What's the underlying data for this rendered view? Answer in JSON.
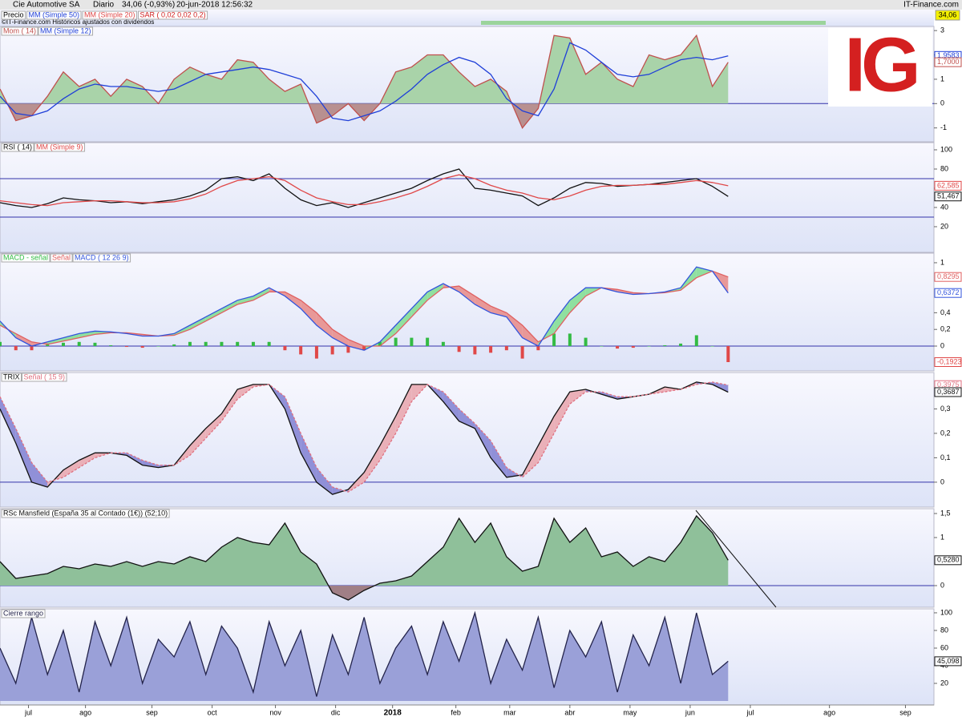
{
  "header": {
    "name": "Cie Automotive SA",
    "period": "Diario",
    "quote": "34,06 (-0,93%)",
    "datetime": "20-jun-2018 12:56:32",
    "source": "IT-Finance.com",
    "logo": "IG"
  },
  "price_panel": {
    "legend": [
      "Precio",
      "MM (Simple 50)",
      "MM (Simple 20)",
      "SAR ( 0,02 0,02 0,2)"
    ],
    "note": "©IT-Finance.com Históricos ajustados con dividendos",
    "last": {
      "value": 34.06,
      "label": "34,06"
    }
  },
  "x_axis": {
    "xlim": [
      0,
      295
    ],
    "xticks": [
      {
        "value": 9,
        "label": "jul"
      },
      {
        "value": 27,
        "label": "ago"
      },
      {
        "value": 48,
        "label": "sep"
      },
      {
        "value": 67,
        "label": "oct"
      },
      {
        "value": 87,
        "label": "nov"
      },
      {
        "value": 106,
        "label": "dic"
      },
      {
        "value": 124,
        "label": "2018"
      },
      {
        "value": 144,
        "label": "feb"
      },
      {
        "value": 161,
        "label": "mar"
      },
      {
        "value": 180,
        "label": "abr"
      },
      {
        "value": 199,
        "label": "may"
      },
      {
        "value": 218,
        "label": "jun"
      },
      {
        "value": 237,
        "label": "jul"
      },
      {
        "value": 262,
        "label": "ago"
      },
      {
        "value": 286,
        "label": "sep"
      }
    ]
  },
  "chart_data": [
    {
      "type": "line",
      "x": [
        0,
        5,
        10,
        15,
        20,
        25,
        30,
        35,
        40,
        45,
        50,
        55,
        60,
        65,
        70,
        75,
        80,
        85,
        90,
        95,
        100,
        105,
        110,
        115,
        120,
        125,
        130,
        135,
        140,
        145,
        150,
        155,
        160,
        165,
        170,
        175,
        180,
        185,
        190,
        195,
        200,
        205,
        210,
        215,
        220,
        225,
        230
      ],
      "ylim": [
        -1.57,
        3.17
      ],
      "yticks": [
        3,
        2,
        1,
        0,
        -1
      ],
      "hlines": [
        0
      ],
      "hline_color": "#3333aa",
      "series": [
        {
          "name": "Mom ( 14)",
          "kind": "area",
          "color": "#c0504d",
          "fill": "#a9d3a9",
          "negative_fill": "#b89090",
          "values": [
            0.6,
            -0.7,
            -0.5,
            0.3,
            1.3,
            0.7,
            1.0,
            0.3,
            1.0,
            0.7,
            0,
            1.0,
            1.5,
            1.2,
            1.0,
            1.8,
            1.7,
            1.0,
            0.5,
            0.8,
            -0.8,
            -0.5,
            0,
            -0.7,
            0,
            1.3,
            1.5,
            2.0,
            2.0,
            1.3,
            0.7,
            1.0,
            0.5,
            -1.0,
            -0.2,
            2.8,
            2.7,
            1.2,
            1.7,
            1.0,
            0.7,
            2.0,
            1.8,
            2.0,
            2.8,
            0.7,
            1.7
          ]
        },
        {
          "name": "MM (Simple 12)",
          "kind": "line",
          "color": "#1f3fd8",
          "values": [
            0.3,
            -0.4,
            -0.5,
            -0.3,
            0.2,
            0.6,
            0.8,
            0.7,
            0.7,
            0.6,
            0.5,
            0.6,
            0.9,
            1.2,
            1.3,
            1.4,
            1.5,
            1.4,
            1.2,
            1.0,
            0.3,
            -0.6,
            -0.7,
            -0.5,
            -0.3,
            0.1,
            0.6,
            1.2,
            1.6,
            1.9,
            1.7,
            1.2,
            0.2,
            -0.3,
            -0.5,
            0.6,
            2.5,
            2.2,
            1.7,
            1.2,
            1.1,
            1.2,
            1.5,
            1.8,
            1.9,
            1.8,
            1.9583
          ]
        }
      ],
      "annotations": [
        {
          "value": 1.9583,
          "label": "1,9583",
          "color": "#1f3fd8"
        },
        {
          "value": 1.7,
          "label": "1,7000",
          "color": "#c0504d"
        }
      ]
    },
    {
      "type": "line",
      "x": [
        0,
        5,
        10,
        15,
        20,
        25,
        30,
        35,
        40,
        45,
        50,
        55,
        60,
        65,
        70,
        75,
        80,
        85,
        90,
        95,
        100,
        105,
        110,
        115,
        120,
        125,
        130,
        135,
        140,
        145,
        150,
        155,
        160,
        165,
        170,
        175,
        180,
        185,
        190,
        195,
        200,
        205,
        210,
        215,
        220,
        225,
        230
      ],
      "ylim": [
        -6.7,
        107.5
      ],
      "yticks": [
        100,
        80,
        60,
        40,
        20
      ],
      "hlines": [
        70,
        30
      ],
      "hline_color": "#3333aa",
      "series": [
        {
          "name": "RSI ( 14)",
          "kind": "line",
          "color": "#111111",
          "values": [
            45,
            42,
            40,
            44,
            50,
            48,
            47,
            45,
            46,
            44,
            46,
            48,
            52,
            58,
            70,
            72,
            68,
            75,
            60,
            48,
            42,
            45,
            40,
            45,
            50,
            55,
            60,
            68,
            75,
            80,
            60,
            58,
            55,
            52,
            42,
            50,
            60,
            66,
            65,
            62,
            63,
            64,
            66,
            68,
            70,
            62,
            51.467
          ]
        },
        {
          "name": "MM (Simple 9)",
          "kind": "line",
          "color": "#e04848",
          "values": [
            47,
            45,
            43,
            42,
            45,
            46,
            47,
            47,
            46,
            45,
            45,
            46,
            49,
            54,
            62,
            68,
            70,
            72,
            68,
            58,
            50,
            46,
            43,
            43,
            46,
            50,
            55,
            62,
            70,
            74,
            70,
            63,
            58,
            55,
            50,
            48,
            52,
            58,
            62,
            63,
            63,
            64,
            64,
            66,
            68,
            66,
            62.585
          ]
        }
      ],
      "annotations": [
        {
          "value": 62.585,
          "label": "62,585",
          "color": "#e04848"
        },
        {
          "value": 51.467,
          "label": "51,467",
          "color": "#111111"
        }
      ]
    },
    {
      "type": "line",
      "x": [
        0,
        5,
        10,
        15,
        20,
        25,
        30,
        35,
        40,
        45,
        50,
        55,
        60,
        65,
        70,
        75,
        80,
        85,
        90,
        95,
        100,
        105,
        110,
        115,
        120,
        125,
        130,
        135,
        140,
        145,
        150,
        155,
        160,
        165,
        170,
        175,
        180,
        185,
        190,
        195,
        200,
        205,
        210,
        215,
        220,
        225,
        230
      ],
      "ylim": [
        -0.298,
        1.115
      ],
      "yticks": [
        1,
        {
          "value": 0.4,
          "label": "0,4"
        },
        {
          "value": 0.2,
          "label": "0,2"
        },
        0
      ],
      "hlines": [
        0
      ],
      "hline_color": "#3333aa",
      "fill_between": true,
      "fill_up": "#8fe0a0",
      "fill_down": "#e89898",
      "series": [
        {
          "name": "MACD - señal",
          "kind": "bar",
          "color": "#33bb44",
          "negative_color": "#e04848",
          "values": [
            0.05,
            -0.05,
            -0.05,
            0.03,
            0.04,
            0.05,
            0.04,
            0.01,
            -0.01,
            -0.02,
            0,
            0.02,
            0.05,
            0.05,
            0.05,
            0.05,
            0.05,
            0.05,
            -0.05,
            -0.1,
            -0.15,
            -0.1,
            -0.08,
            -0.05,
            0.05,
            0.1,
            0.1,
            0.1,
            0.05,
            -0.07,
            -0.1,
            -0.08,
            -0.05,
            -0.15,
            -0.05,
            0.15,
            0.15,
            0.1,
            0,
            -0.03,
            -0.02,
            0,
            0.01,
            0.03,
            0.13,
            0,
            -0.1923
          ]
        },
        {
          "name": "Señal",
          "kind": "line",
          "color": "#e06060",
          "values": [
            0.25,
            0.15,
            0.05,
            0.02,
            0.06,
            0.1,
            0.14,
            0.16,
            0.16,
            0.14,
            0.12,
            0.13,
            0.2,
            0.3,
            0.4,
            0.5,
            0.55,
            0.65,
            0.65,
            0.55,
            0.4,
            0.2,
            0.08,
            0.0,
            0.0,
            0.15,
            0.35,
            0.55,
            0.7,
            0.72,
            0.6,
            0.48,
            0.4,
            0.25,
            0.05,
            0.15,
            0.4,
            0.6,
            0.7,
            0.68,
            0.64,
            0.63,
            0.64,
            0.67,
            0.82,
            0.9,
            0.8295
          ]
        },
        {
          "name": "MACD ( 12 26 9)",
          "kind": "line",
          "color": "#3355dd",
          "values": [
            0.3,
            0.1,
            0.0,
            0.05,
            0.1,
            0.15,
            0.18,
            0.17,
            0.15,
            0.12,
            0.12,
            0.15,
            0.25,
            0.35,
            0.45,
            0.55,
            0.6,
            0.7,
            0.6,
            0.45,
            0.25,
            0.1,
            0.0,
            -0.05,
            0.05,
            0.25,
            0.45,
            0.65,
            0.75,
            0.65,
            0.5,
            0.4,
            0.35,
            0.1,
            0.0,
            0.3,
            0.55,
            0.7,
            0.7,
            0.65,
            0.62,
            0.63,
            0.65,
            0.7,
            0.95,
            0.9,
            0.6372
          ]
        }
      ],
      "annotations": [
        {
          "value": 0.8295,
          "label": "0,8295",
          "color": "#e06060"
        },
        {
          "value": 0.6372,
          "label": "0,6372",
          "color": "#3355dd"
        },
        {
          "value": -0.1923,
          "label": "-0,1923",
          "color": "#e04848"
        }
      ]
    },
    {
      "type": "line",
      "x": [
        0,
        5,
        10,
        15,
        20,
        25,
        30,
        35,
        40,
        45,
        50,
        55,
        60,
        65,
        70,
        75,
        80,
        85,
        90,
        95,
        100,
        105,
        110,
        115,
        120,
        125,
        130,
        135,
        140,
        145,
        150,
        155,
        160,
        165,
        170,
        175,
        180,
        185,
        190,
        195,
        200,
        205,
        210,
        215,
        220,
        225,
        230
      ],
      "ylim": [
        -0.102,
        0.449
      ],
      "yticks": [
        {
          "value": 0.3,
          "label": "0,3"
        },
        {
          "value": 0.2,
          "label": "0,2"
        },
        {
          "value": 0.1,
          "label": "0,1"
        },
        0
      ],
      "hlines": [
        0
      ],
      "hline_color": "#3333aa",
      "fill_between": true,
      "fill_up": "#9090d8",
      "fill_down": "#eab0b8",
      "series": [
        {
          "name": "TRIX",
          "kind": "line",
          "color": "#111111",
          "values": [
            0.3,
            0.16,
            0.0,
            -0.02,
            0.05,
            0.09,
            0.12,
            0.12,
            0.11,
            0.07,
            0.06,
            0.07,
            0.15,
            0.22,
            0.28,
            0.38,
            0.4,
            0.4,
            0.3,
            0.12,
            0.0,
            -0.05,
            -0.03,
            0.04,
            0.15,
            0.27,
            0.4,
            0.4,
            0.33,
            0.25,
            0.22,
            0.1,
            0.02,
            0.03,
            0.15,
            0.27,
            0.37,
            0.38,
            0.36,
            0.34,
            0.35,
            0.36,
            0.39,
            0.38,
            0.41,
            0.4,
            0.3687
          ]
        },
        {
          "name": "Señal ( 15 9)",
          "kind": "line",
          "color": "#e07080",
          "dash": true,
          "values": [
            0.35,
            0.22,
            0.08,
            0.0,
            0.02,
            0.06,
            0.1,
            0.12,
            0.12,
            0.09,
            0.07,
            0.07,
            0.11,
            0.18,
            0.25,
            0.34,
            0.39,
            0.4,
            0.35,
            0.2,
            0.06,
            -0.02,
            -0.04,
            0.0,
            0.09,
            0.2,
            0.33,
            0.4,
            0.37,
            0.3,
            0.24,
            0.17,
            0.06,
            0.02,
            0.08,
            0.2,
            0.32,
            0.37,
            0.37,
            0.35,
            0.35,
            0.36,
            0.37,
            0.38,
            0.4,
            0.41,
            0.3975
          ]
        }
      ],
      "annotations": [
        {
          "value": 0.3975,
          "label": "0,3975",
          "color": "#e07080"
        },
        {
          "value": 0.3687,
          "label": "0,3687",
          "color": "#111111"
        }
      ]
    },
    {
      "type": "line",
      "x": [
        0,
        5,
        10,
        15,
        20,
        25,
        30,
        35,
        40,
        45,
        50,
        55,
        60,
        65,
        70,
        75,
        80,
        85,
        90,
        95,
        100,
        105,
        110,
        115,
        120,
        125,
        130,
        135,
        140,
        145,
        150,
        155,
        160,
        165,
        170,
        175,
        180,
        185,
        190,
        195,
        200,
        205,
        210,
        215,
        220,
        225,
        230
      ],
      "ylim": [
        -0.45,
        1.6
      ],
      "yticks": [
        {
          "value": 1.5,
          "label": "1,5"
        },
        1,
        0
      ],
      "hlines": [
        0
      ],
      "hline_color": "#3333aa",
      "series": [
        {
          "name": "RSc Mansfield (España 35 al Contado (1€)) (52;10)",
          "kind": "area",
          "color": "#111111",
          "fill": "#8fc09a",
          "negative_fill": "#a07f86",
          "values": [
            0.5,
            0.15,
            0.2,
            0.25,
            0.4,
            0.35,
            0.45,
            0.4,
            0.5,
            0.4,
            0.5,
            0.45,
            0.6,
            0.5,
            0.8,
            1.0,
            0.9,
            0.85,
            1.3,
            0.7,
            0.45,
            -0.15,
            -0.3,
            -0.1,
            0.05,
            0.1,
            0.2,
            0.5,
            0.8,
            1.4,
            0.9,
            1.3,
            0.6,
            0.3,
            0.4,
            1.4,
            0.9,
            1.2,
            0.6,
            0.7,
            0.4,
            0.6,
            0.5,
            0.9,
            1.45,
            1.1,
            0.528
          ]
        }
      ],
      "annotations": [
        {
          "value": 0.528,
          "label": "0,5280",
          "color": "#111111"
        }
      ]
    },
    {
      "type": "line",
      "x": [
        0,
        5,
        10,
        15,
        20,
        25,
        30,
        35,
        40,
        45,
        50,
        55,
        60,
        65,
        70,
        75,
        80,
        85,
        90,
        95,
        100,
        105,
        110,
        115,
        120,
        125,
        130,
        135,
        140,
        145,
        150,
        155,
        160,
        165,
        170,
        175,
        180,
        185,
        190,
        195,
        200,
        205,
        210,
        215,
        220,
        225,
        230
      ],
      "ylim": [
        -4.5,
        104.5
      ],
      "yticks": [
        100,
        80,
        60,
        40,
        20
      ],
      "hlines": [],
      "series": [
        {
          "name": "Cierre rango",
          "kind": "area",
          "color": "#22224a",
          "fill": "#9aa0d8",
          "negative_fill": "#9aa0d8",
          "values": [
            60,
            20,
            95,
            30,
            80,
            10,
            90,
            40,
            95,
            20,
            70,
            50,
            90,
            30,
            85,
            60,
            10,
            90,
            40,
            80,
            5,
            75,
            30,
            95,
            20,
            60,
            85,
            30,
            90,
            45,
            100,
            20,
            70,
            35,
            95,
            15,
            80,
            50,
            90,
            10,
            75,
            40,
            95,
            20,
            100,
            30,
            45.098
          ]
        }
      ],
      "annotations": [
        {
          "value": 45.098,
          "label": "45,098",
          "color": "#111111"
        }
      ]
    }
  ]
}
